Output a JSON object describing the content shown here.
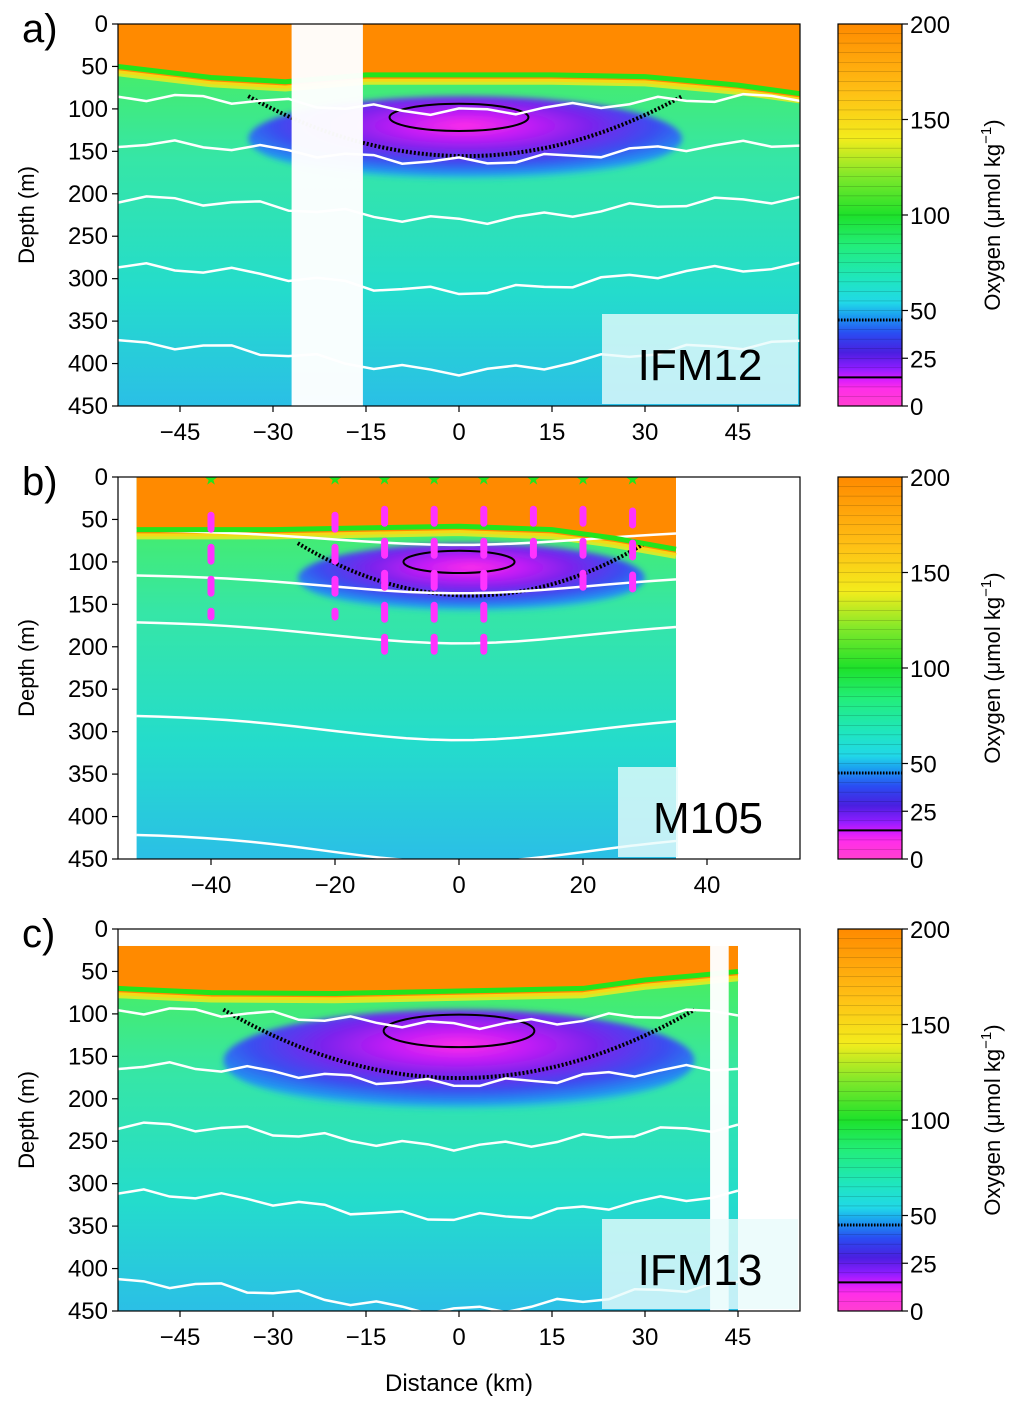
{
  "figure": {
    "colorbar_label": "Oxygen (μmol kg",
    "colorbar_sup": "−1",
    "colorbar_close": ")",
    "colorbar_ticks": [
      0,
      25,
      50,
      100,
      150,
      200
    ],
    "colors": {
      "surface": "#ff8a00",
      "oxycline_line": "#22e41c",
      "isopycnal": "#ffffff",
      "station_marker": "#ff33ff",
      "station_star": "#22e41c",
      "gap": "#ffffff"
    }
  },
  "chart_data": [
    {
      "type": "heatmap",
      "panel_label": "a)",
      "cruise_label": "IFM12",
      "ylabel": "Depth (m)",
      "xlabel": "",
      "xlim": [
        -55,
        55
      ],
      "ylim": [
        450,
        0
      ],
      "xticks": [
        -45,
        -30,
        -15,
        0,
        15,
        30,
        45
      ],
      "yticks": [
        0,
        50,
        100,
        150,
        200,
        250,
        300,
        350,
        400,
        450
      ],
      "data_range_x": [
        -55,
        55
      ],
      "data_top_depth": 0,
      "data_gaps_x": [
        [
          -27,
          -15.5
        ]
      ],
      "core_extent_x": [
        -34,
        36
      ],
      "core_depth_range": [
        85,
        185
      ],
      "min_oxygen_depth": 110,
      "oxycline_depth": [
        [
          -55,
          50
        ],
        [
          -40,
          63
        ],
        [
          -28,
          68
        ],
        [
          -15,
          60
        ],
        [
          0,
          60
        ],
        [
          15,
          60
        ],
        [
          30,
          62
        ],
        [
          45,
          72
        ],
        [
          55,
          82
        ]
      ],
      "isopycnal_depths": [
        85,
        140,
        205,
        285,
        375
      ],
      "station_markers": false
    },
    {
      "type": "heatmap",
      "panel_label": "b)",
      "cruise_label": "M105",
      "ylabel": "Depth (m)",
      "xlabel": "",
      "xlim": [
        -55,
        55
      ],
      "ylim": [
        450,
        0
      ],
      "xticks": [
        -40,
        -20,
        0,
        20,
        40
      ],
      "yticks": [
        0,
        50,
        100,
        150,
        200,
        250,
        300,
        350,
        400,
        450
      ],
      "data_range_x": [
        -52,
        35
      ],
      "data_top_depth": 0,
      "data_gaps_x": [],
      "core_extent_x": [
        -26,
        30
      ],
      "core_depth_range": [
        78,
        160
      ],
      "min_oxygen_depth": 100,
      "oxycline_depth": [
        [
          -52,
          62
        ],
        [
          -30,
          62
        ],
        [
          -15,
          60
        ],
        [
          0,
          58
        ],
        [
          15,
          62
        ],
        [
          25,
          72
        ],
        [
          35,
          85
        ]
      ],
      "isopycnal_depths": [
        62,
        115,
        170,
        280,
        420
      ],
      "station_markers": true,
      "stations_x": [
        -40,
        -20,
        -12,
        -4,
        4,
        12,
        20,
        28
      ],
      "station_sample_ranges": [
        [
          45,
          165
        ],
        [
          45,
          165
        ],
        [
          38,
          225
        ],
        [
          38,
          225
        ],
        [
          38,
          215
        ],
        [
          38,
          110
        ],
        [
          38,
          130
        ],
        [
          40,
          140
        ]
      ]
    },
    {
      "type": "heatmap",
      "panel_label": "c)",
      "cruise_label": "IFM13",
      "ylabel": "Depth (m)",
      "xlabel": "Distance (km)",
      "xlim": [
        -55,
        55
      ],
      "ylim": [
        450,
        0
      ],
      "xticks": [
        -45,
        -30,
        -15,
        0,
        15,
        30,
        45
      ],
      "yticks": [
        0,
        50,
        100,
        150,
        200,
        250,
        300,
        350,
        400,
        450
      ],
      "data_range_x": [
        -55,
        45
      ],
      "data_top_depth": 20,
      "data_gaps_x": [
        [
          40.5,
          43.5
        ]
      ],
      "core_extent_x": [
        -38,
        38
      ],
      "core_depth_range": [
        95,
        215
      ],
      "min_oxygen_depth": 120,
      "oxycline_depth": [
        [
          -55,
          70
        ],
        [
          -40,
          75
        ],
        [
          -20,
          76
        ],
        [
          0,
          73
        ],
        [
          20,
          70
        ],
        [
          30,
          60
        ],
        [
          38,
          55
        ],
        [
          45,
          50
        ]
      ],
      "isopycnal_depths": [
        95,
        160,
        230,
        310,
        415
      ],
      "station_markers": false
    }
  ]
}
